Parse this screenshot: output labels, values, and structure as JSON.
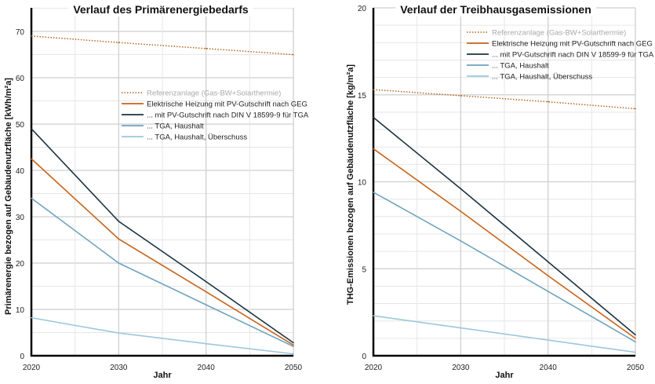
{
  "chart_data": [
    {
      "type": "line",
      "title": "Verlauf des Primärenergiebedarfs",
      "xlabel": "Jahr",
      "ylabel": "Primärenergie bezogen auf Gebäudenutzfläche [kWh/m²a]",
      "x": [
        2020,
        2030,
        2040,
        2050
      ],
      "xlim": [
        2020,
        2050
      ],
      "ylim": [
        0,
        70
      ],
      "xticks": [
        "2020",
        "2030",
        "2040",
        "2050"
      ],
      "yticks": [
        "0",
        "10",
        "20",
        "30",
        "40",
        "50",
        "60",
        "70"
      ],
      "grid": true,
      "legend_position": "center-right",
      "series": [
        {
          "name": "Referenzanlage (Gas-BW+Solarthermie)",
          "values": [
            69,
            67.6,
            66.3,
            65
          ],
          "color": "#b5651d",
          "dash": "dotted",
          "legend_color": "#aaaaaa"
        },
        {
          "name": "Elektrische Heizung mit PV-Gutschrift nach GEG",
          "values": [
            42.5,
            25.2,
            13.8,
            2.3
          ],
          "color": "#c8641a"
        },
        {
          "name": "... mit PV-Gutschrift nach DIN V 18599-9 für TGA",
          "values": [
            49,
            29,
            16,
            2.8
          ],
          "color": "#1c3340"
        },
        {
          "name": "... TGA, Haushalt",
          "values": [
            34,
            20,
            11,
            2.0
          ],
          "color": "#6fa3bf"
        },
        {
          "name": "... TGA, Haushalt, Überschuss",
          "values": [
            8.2,
            4.9,
            2.6,
            0.4
          ],
          "color": "#9cc8dc"
        }
      ]
    },
    {
      "type": "line",
      "title": "Verlauf der Treibhausgasemissionen",
      "xlabel": "Jahr",
      "ylabel": "THG-Emissionen bezogen auf Gebäudenutzfläche [kg/m²a]",
      "x": [
        2020,
        2030,
        2040,
        2050
      ],
      "xlim": [
        2020,
        2050
      ],
      "ylim": [
        0,
        20
      ],
      "xticks": [
        "2020",
        "2030",
        "2040",
        "2050"
      ],
      "yticks": [
        "0",
        "5",
        "10",
        "15",
        "20"
      ],
      "grid": true,
      "legend_position": "top-right",
      "series": [
        {
          "name": "Referenzanlage (Gas-BW+Solarthermie)",
          "values": [
            15.3,
            14.95,
            14.6,
            14.2
          ],
          "color": "#b5651d",
          "dash": "dotted",
          "legend_color": "#aaaaaa"
        },
        {
          "name": "Elektrische Heizung mit PV-Gutschrift nach GEG",
          "values": [
            11.9,
            8.3,
            4.6,
            1.0
          ],
          "color": "#c8641a"
        },
        {
          "name": "... mit PV-Gutschrift nach DIN V 18599-9 für TGA",
          "values": [
            13.7,
            9.6,
            5.4,
            1.2
          ],
          "color": "#1c3340"
        },
        {
          "name": "... TGA, Haushalt",
          "values": [
            9.4,
            6.6,
            3.7,
            0.8
          ],
          "color": "#6fa3bf"
        },
        {
          "name": "... TGA, Haushalt, Überschuss",
          "values": [
            2.3,
            1.6,
            0.9,
            0.2
          ],
          "color": "#9cc8dc"
        }
      ]
    }
  ]
}
